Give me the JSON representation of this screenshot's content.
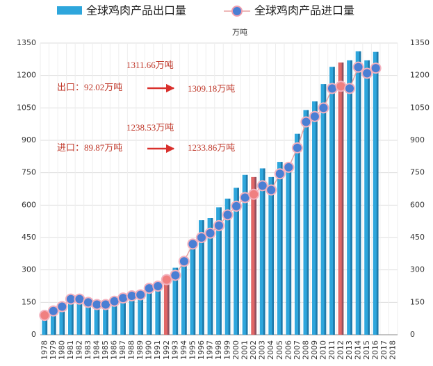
{
  "chart_data": {
    "type": "bar_line",
    "y_label": "万吨",
    "categories": [
      "1978",
      "1979",
      "1980",
      "1981",
      "1982",
      "1983",
      "1984",
      "1985",
      "1986",
      "1987",
      "1988",
      "1989",
      "1990",
      "1991",
      "1992",
      "1993",
      "1994",
      "1995",
      "1996",
      "1997",
      "1998",
      "1999",
      "2000",
      "2001",
      "2002",
      "2003",
      "2004",
      "2005",
      "2006",
      "2007",
      "2008",
      "2009",
      "2010",
      "2011",
      "2012",
      "2013",
      "2014",
      "2015",
      "2016",
      "2017",
      "2018"
    ],
    "series": [
      {
        "name": "全球鸡肉产品出口量",
        "type": "bar",
        "color": "#2ea6dc",
        "values": [
          92.02,
          110,
          125,
          165,
          160,
          150,
          140,
          145,
          160,
          175,
          180,
          185,
          215,
          230,
          250,
          310,
          350,
          420,
          530,
          540,
          590,
          630,
          680,
          740,
          730,
          770,
          730,
          800,
          790,
          930,
          1040,
          1080,
          1160,
          1240,
          1260,
          1270,
          1311.66,
          1270,
          1309.18,
          null,
          null
        ],
        "colors": [
          "#2ea6dc",
          "#2ea6dc",
          "#2ea6dc",
          "#2ea6dc",
          "#2ea6dc",
          "#2ea6dc",
          "#2ea6dc",
          "#2ea6dc",
          "#2ea6dc",
          "#2ea6dc",
          "#2ea6dc",
          "#2ea6dc",
          "#2ea6dc",
          "#2ea6dc",
          "#e06666",
          "#2ea6dc",
          "#2ea6dc",
          "#2ea6dc",
          "#2ea6dc",
          "#2ea6dc",
          "#2ea6dc",
          "#2ea6dc",
          "#2ea6dc",
          "#2ea6dc",
          "#e06666",
          "#2ea6dc",
          "#2ea6dc",
          "#2ea6dc",
          "#2ea6dc",
          "#2ea6dc",
          "#2ea6dc",
          "#2ea6dc",
          "#2ea6dc",
          "#2ea6dc",
          "#e06666",
          "#2ea6dc",
          "#2ea6dc",
          "#2ea6dc",
          "#2ea6dc",
          null,
          null
        ]
      },
      {
        "name": "全球鸡肉产品进口量",
        "type": "line",
        "color": "#4a7fd4",
        "values": [
          89.87,
          110,
          130,
          165,
          165,
          150,
          140,
          140,
          155,
          170,
          180,
          185,
          215,
          225,
          255,
          275,
          340,
          420,
          450,
          470,
          505,
          555,
          595,
          635,
          650,
          690,
          670,
          745,
          775,
          865,
          985,
          1010,
          1050,
          1140,
          1150,
          1140,
          1238.53,
          1210,
          1233.86,
          null,
          null
        ],
        "colors": [
          "#f08080",
          "#4a7fd4",
          "#4a7fd4",
          "#4a7fd4",
          "#4a7fd4",
          "#4a7fd4",
          "#4a7fd4",
          "#4a7fd4",
          "#4a7fd4",
          "#4a7fd4",
          "#4a7fd4",
          "#4a7fd4",
          "#4a7fd4",
          "#4a7fd4",
          "#f08080",
          "#4a7fd4",
          "#4a7fd4",
          "#4a7fd4",
          "#4a7fd4",
          "#4a7fd4",
          "#4a7fd4",
          "#4a7fd4",
          "#4a7fd4",
          "#4a7fd4",
          "#f08080",
          "#4a7fd4",
          "#4a7fd4",
          "#4a7fd4",
          "#4a7fd4",
          "#4a7fd4",
          "#4a7fd4",
          "#4a7fd4",
          "#4a7fd4",
          "#4a7fd4",
          "#f08080",
          "#4a7fd4",
          "#4a7fd4",
          "#4a7fd4",
          "#4a7fd4",
          null,
          null
        ]
      }
    ],
    "ylim": [
      0,
      1350
    ],
    "yticks": [
      0,
      150,
      300,
      450,
      600,
      750,
      900,
      1050,
      1200,
      1350
    ],
    "y2lim": [
      0,
      1350
    ],
    "y2ticks": [
      0,
      150,
      300,
      450,
      600,
      750,
      900,
      1050,
      1200,
      1350
    ],
    "grid": true,
    "annotations": [
      "1311.66万吨",
      "出口：92.02万吨",
      "1309.18万吨",
      "1238.53万吨",
      "进口：89.87万吨",
      "1233.86万吨"
    ]
  }
}
